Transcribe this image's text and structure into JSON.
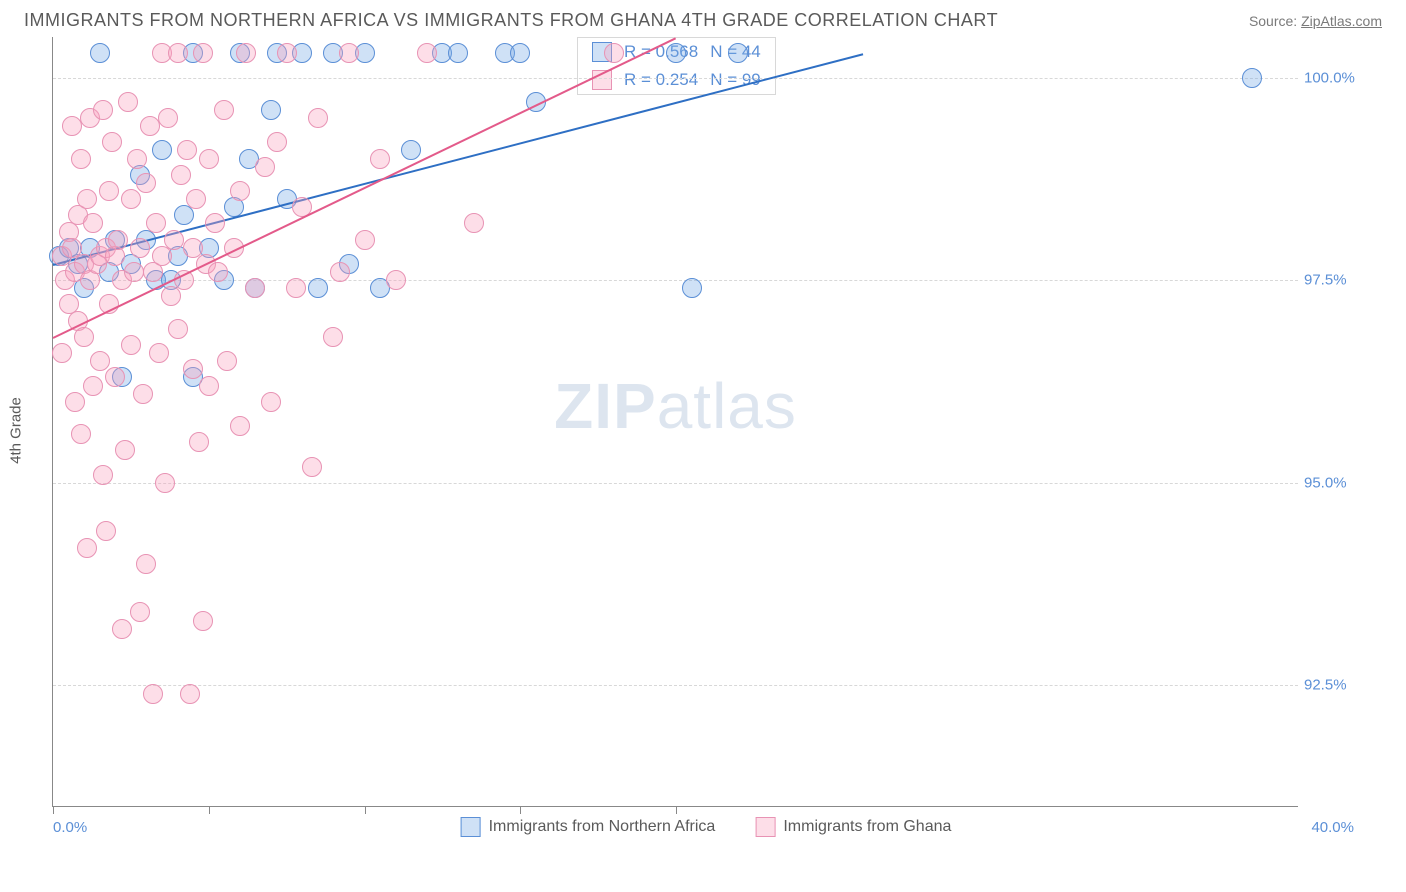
{
  "header": {
    "title": "IMMIGRANTS FROM NORTHERN AFRICA VS IMMIGRANTS FROM GHANA 4TH GRADE CORRELATION CHART",
    "source_prefix": "Source: ",
    "source_link": "ZipAtlas.com"
  },
  "chart": {
    "type": "scatter",
    "background_color": "#ffffff",
    "grid_color": "#d8d8d8",
    "axis_color": "#888888",
    "tick_label_color": "#5b8fd6",
    "ylabel": "4th Grade",
    "ylabel_color": "#5a5a5a",
    "xlim": [
      0.0,
      40.0
    ],
    "ylim": [
      91.0,
      100.5
    ],
    "x_min_label": "0.0%",
    "x_max_label": "40.0%",
    "x_tick_positions": [
      0,
      5,
      10,
      15,
      20
    ],
    "y_ticks": [
      {
        "v": 92.5,
        "label": "92.5%"
      },
      {
        "v": 95.0,
        "label": "95.0%"
      },
      {
        "v": 97.5,
        "label": "97.5%"
      },
      {
        "v": 100.0,
        "label": "100.0%"
      }
    ],
    "marker_radius": 10,
    "marker_stroke_width": 1.5,
    "watermark": "ZIPatlas",
    "series": [
      {
        "name": "Immigrants from Northern Africa",
        "fill": "rgba(118,168,228,0.35)",
        "stroke": "#5b8fd6",
        "trend_color": "#2e6fc4",
        "trend": {
          "x1": 0.0,
          "y1": 97.7,
          "x2": 26.0,
          "y2": 100.3
        },
        "R": 0.568,
        "N": 44,
        "points": [
          [
            0.2,
            97.8
          ],
          [
            0.5,
            97.9
          ],
          [
            0.8,
            97.7
          ],
          [
            1.0,
            97.4
          ],
          [
            1.2,
            97.9
          ],
          [
            1.5,
            100.3
          ],
          [
            1.8,
            97.6
          ],
          [
            2.0,
            98.0
          ],
          [
            2.2,
            96.3
          ],
          [
            2.5,
            97.7
          ],
          [
            2.8,
            98.8
          ],
          [
            3.0,
            98.0
          ],
          [
            3.3,
            97.5
          ],
          [
            3.5,
            99.1
          ],
          [
            3.8,
            97.5
          ],
          [
            4.0,
            97.8
          ],
          [
            4.2,
            98.3
          ],
          [
            4.5,
            100.3
          ],
          [
            4.5,
            96.3
          ],
          [
            5.0,
            97.9
          ],
          [
            5.5,
            97.5
          ],
          [
            5.8,
            98.4
          ],
          [
            6.0,
            100.3
          ],
          [
            6.3,
            99.0
          ],
          [
            6.5,
            97.4
          ],
          [
            7.0,
            99.6
          ],
          [
            7.2,
            100.3
          ],
          [
            7.5,
            98.5
          ],
          [
            8.0,
            100.3
          ],
          [
            8.5,
            97.4
          ],
          [
            9.0,
            100.3
          ],
          [
            9.5,
            97.7
          ],
          [
            10.0,
            100.3
          ],
          [
            10.5,
            97.4
          ],
          [
            11.5,
            99.1
          ],
          [
            12.5,
            100.3
          ],
          [
            13.0,
            100.3
          ],
          [
            14.5,
            100.3
          ],
          [
            15.0,
            100.3
          ],
          [
            15.5,
            99.7
          ],
          [
            20.0,
            100.3
          ],
          [
            20.5,
            97.4
          ],
          [
            22.0,
            100.3
          ],
          [
            38.5,
            100.0
          ]
        ]
      },
      {
        "name": "Immigrants from Ghana",
        "fill": "rgba(248,160,190,0.35)",
        "stroke": "#e893b4",
        "trend_color": "#e35a8a",
        "trend": {
          "x1": 0.0,
          "y1": 96.8,
          "x2": 20.0,
          "y2": 100.5
        },
        "R": 0.254,
        "N": 99,
        "points": [
          [
            0.3,
            97.8
          ],
          [
            0.3,
            96.6
          ],
          [
            0.4,
            97.5
          ],
          [
            0.5,
            98.1
          ],
          [
            0.5,
            97.2
          ],
          [
            0.6,
            99.4
          ],
          [
            0.6,
            97.9
          ],
          [
            0.7,
            96.0
          ],
          [
            0.7,
            97.6
          ],
          [
            0.8,
            98.3
          ],
          [
            0.8,
            97.0
          ],
          [
            0.9,
            99.0
          ],
          [
            0.9,
            95.6
          ],
          [
            1.0,
            97.7
          ],
          [
            1.0,
            96.8
          ],
          [
            1.1,
            98.5
          ],
          [
            1.1,
            94.2
          ],
          [
            1.2,
            99.5
          ],
          [
            1.2,
            97.5
          ],
          [
            1.3,
            96.2
          ],
          [
            1.3,
            98.2
          ],
          [
            1.4,
            97.7
          ],
          [
            1.5,
            97.8
          ],
          [
            1.5,
            96.5
          ],
          [
            1.6,
            99.6
          ],
          [
            1.6,
            95.1
          ],
          [
            1.7,
            97.9
          ],
          [
            1.7,
            94.4
          ],
          [
            1.8,
            98.6
          ],
          [
            1.8,
            97.2
          ],
          [
            1.9,
            99.2
          ],
          [
            2.0,
            97.8
          ],
          [
            2.0,
            96.3
          ],
          [
            2.1,
            98.0
          ],
          [
            2.2,
            97.5
          ],
          [
            2.2,
            93.2
          ],
          [
            2.3,
            95.4
          ],
          [
            2.4,
            99.7
          ],
          [
            2.5,
            98.5
          ],
          [
            2.5,
            96.7
          ],
          [
            2.6,
            97.6
          ],
          [
            2.7,
            99.0
          ],
          [
            2.8,
            93.4
          ],
          [
            2.8,
            97.9
          ],
          [
            2.9,
            96.1
          ],
          [
            3.0,
            98.7
          ],
          [
            3.0,
            94.0
          ],
          [
            3.1,
            99.4
          ],
          [
            3.2,
            97.6
          ],
          [
            3.2,
            92.4
          ],
          [
            3.3,
            98.2
          ],
          [
            3.4,
            96.6
          ],
          [
            3.5,
            100.3
          ],
          [
            3.5,
            97.8
          ],
          [
            3.6,
            95.0
          ],
          [
            3.7,
            99.5
          ],
          [
            3.8,
            97.3
          ],
          [
            3.9,
            98.0
          ],
          [
            4.0,
            96.9
          ],
          [
            4.0,
            100.3
          ],
          [
            4.1,
            98.8
          ],
          [
            4.2,
            97.5
          ],
          [
            4.3,
            99.1
          ],
          [
            4.4,
            92.4
          ],
          [
            4.5,
            97.9
          ],
          [
            4.5,
            96.4
          ],
          [
            4.6,
            98.5
          ],
          [
            4.7,
            95.5
          ],
          [
            4.8,
            100.3
          ],
          [
            4.8,
            93.3
          ],
          [
            4.9,
            97.7
          ],
          [
            5.0,
            99.0
          ],
          [
            5.0,
            96.2
          ],
          [
            5.2,
            98.2
          ],
          [
            5.3,
            97.6
          ],
          [
            5.5,
            99.6
          ],
          [
            5.6,
            96.5
          ],
          [
            5.8,
            97.9
          ],
          [
            6.0,
            98.6
          ],
          [
            6.0,
            95.7
          ],
          [
            6.2,
            100.3
          ],
          [
            6.5,
            97.4
          ],
          [
            6.8,
            98.9
          ],
          [
            7.0,
            96.0
          ],
          [
            7.2,
            99.2
          ],
          [
            7.5,
            100.3
          ],
          [
            7.8,
            97.4
          ],
          [
            8.0,
            98.4
          ],
          [
            8.3,
            95.2
          ],
          [
            8.5,
            99.5
          ],
          [
            9.0,
            96.8
          ],
          [
            9.2,
            97.6
          ],
          [
            9.5,
            100.3
          ],
          [
            10.0,
            98.0
          ],
          [
            10.5,
            99.0
          ],
          [
            11.0,
            97.5
          ],
          [
            12.0,
            100.3
          ],
          [
            13.5,
            98.2
          ],
          [
            18.0,
            100.3
          ]
        ]
      }
    ],
    "bottom_legend": [
      {
        "label": "Immigrants from Northern Africa",
        "fill": "rgba(118,168,228,0.35)",
        "stroke": "#5b8fd6"
      },
      {
        "label": "Immigrants from Ghana",
        "fill": "rgba(248,160,190,0.35)",
        "stroke": "#e893b4"
      }
    ]
  }
}
